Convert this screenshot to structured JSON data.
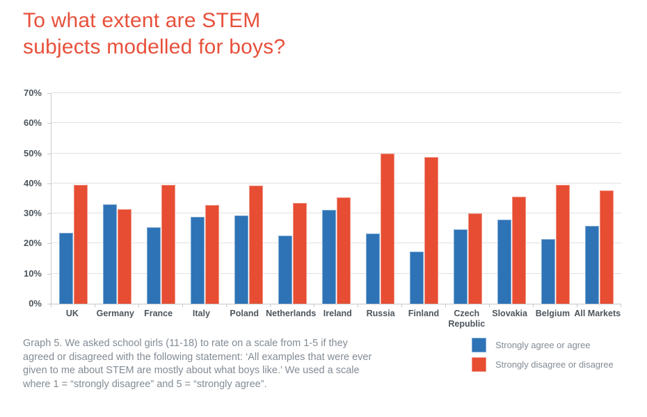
{
  "header": {
    "title": "To what extent are STEM subjects modelled for boys?",
    "title_lines": [
      "To what extent are STEM",
      "subjects modelled for boys?"
    ]
  },
  "colors": {
    "agree": "#2e73b6",
    "disagree": "#e74d33",
    "title": "#e8503b",
    "axis_text": "#4d555c",
    "caption_text": "#828b94",
    "gridline": "#e0e0e0"
  },
  "chart_data": {
    "type": "bar",
    "title": "To what extent are STEM subjects modelled for boys?",
    "categories": [
      "UK",
      "Germany",
      "France",
      "Italy",
      "Poland",
      "Netherlands",
      "Ireland",
      "Russia",
      "Finland",
      "Czech Republic",
      "Slovakia",
      "Belgium",
      "All Markets"
    ],
    "series": [
      {
        "name": "Strongly agree or agree",
        "color_key": "agree",
        "values": [
          23.6,
          33.1,
          25.4,
          28.8,
          29.3,
          22.6,
          31.2,
          23.4,
          17.4,
          24.7,
          27.9,
          21.4,
          25.9
        ]
      },
      {
        "name": "Strongly disagree or disagree",
        "color_key": "disagree",
        "values": [
          39.6,
          31.5,
          39.6,
          32.9,
          39.3,
          33.5,
          35.3,
          50.0,
          48.7,
          30.1,
          35.5,
          39.5,
          37.7
        ]
      }
    ],
    "xlabel": "",
    "ylabel": "",
    "ylim": [
      0,
      70
    ],
    "ytick_step": 10,
    "ytick_labels": [
      "0%",
      "10%",
      "20%",
      "30%",
      "40%",
      "50%",
      "60%",
      "70%"
    ],
    "grid": true,
    "legend_position": "bottom-right",
    "wrap_labels": [
      "Czech Republic"
    ]
  },
  "legend": {
    "items": [
      {
        "label": "Strongly agree or agree",
        "color_key": "agree"
      },
      {
        "label": "Strongly disagree or disagree",
        "color_key": "disagree"
      }
    ]
  },
  "caption": {
    "text": "Graph 5. We asked school girls (11-18) to rate on a scale from 1-5 if they agreed or disagreed with the following statement: ‘All examples that were ever given to me about STEM are mostly about what boys like.’ We used a scale where 1 = “strongly disagree” and 5 = “strongly agree”.",
    "lines": [
      "Graph 5. We asked school girls (11-18) to rate on a scale from 1-5 if they",
      "agreed or disagreed with the following statement: ‘All examples that were ever",
      "given to me about STEM are mostly about what boys like.’ We used a scale",
      "where 1 = “strongly disagree” and 5 = “strongly agree”."
    ]
  }
}
